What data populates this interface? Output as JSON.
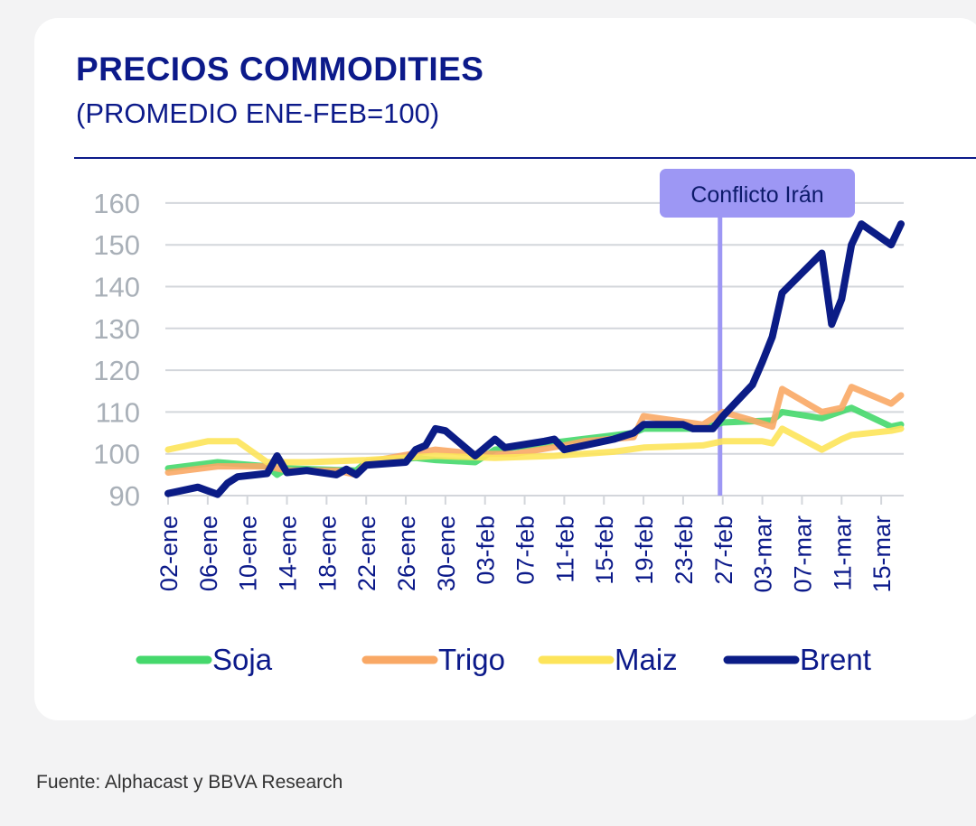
{
  "chart_data": {
    "type": "line",
    "title": "PRECIOS COMMODITIES",
    "subtitle": "(PROMEDIO ENE-FEB=100)",
    "ylim": [
      90,
      160
    ],
    "yticks": [
      "90",
      "100",
      "110",
      "120",
      "130",
      "140",
      "150",
      "160"
    ],
    "xticks": [
      "02-ene",
      "06-ene",
      "10-ene",
      "14-ene",
      "18-ene",
      "22-ene",
      "26-ene",
      "30-ene",
      "03-feb",
      "07-feb",
      "11-feb",
      "15-feb",
      "19-feb",
      "23-feb",
      "27-feb",
      "03-mar",
      "07-mar",
      "11-mar",
      "15-mar"
    ],
    "grid": true,
    "legend": "bottom",
    "annotation": {
      "label": "Conflicto Irán",
      "x": "27-feb",
      "color": "#9d97f4"
    },
    "series": [
      {
        "name": "Soja",
        "color": "#45d86c",
        "points": [
          [
            "02-ene",
            96.5
          ],
          [
            "07-ene",
            98
          ],
          [
            "12-ene",
            97
          ],
          [
            "13-ene",
            95
          ],
          [
            "14-ene",
            96.5
          ],
          [
            "21-ene",
            96
          ],
          [
            "22-ene",
            98
          ],
          [
            "27-ene",
            99
          ],
          [
            "29-ene",
            98.5
          ],
          [
            "02-feb",
            98
          ],
          [
            "04-feb",
            101
          ],
          [
            "11-feb",
            103
          ],
          [
            "18-feb",
            105
          ],
          [
            "19-feb",
            106
          ],
          [
            "25-feb",
            106
          ],
          [
            "27-feb",
            107.5
          ],
          [
            "04-mar",
            108
          ],
          [
            "05-mar",
            110
          ],
          [
            "09-mar",
            108.5
          ],
          [
            "12-mar",
            111
          ],
          [
            "16-mar",
            106.5
          ],
          [
            "17-mar",
            107
          ]
        ]
      },
      {
        "name": "Trigo",
        "color": "#f9a865",
        "points": [
          [
            "02-ene",
            95.5
          ],
          [
            "07-ene",
            97
          ],
          [
            "12-ene",
            97
          ],
          [
            "14-ene",
            96
          ],
          [
            "19-ene",
            96
          ],
          [
            "21-ene",
            95
          ],
          [
            "22-ene",
            98
          ],
          [
            "29-ene",
            101
          ],
          [
            "02-feb",
            100
          ],
          [
            "06-feb",
            100
          ],
          [
            "11-feb",
            102
          ],
          [
            "13-feb",
            103
          ],
          [
            "18-feb",
            104
          ],
          [
            "19-feb",
            109
          ],
          [
            "25-feb",
            107
          ],
          [
            "27-feb",
            110
          ],
          [
            "02-mar",
            108
          ],
          [
            "04-mar",
            106.5
          ],
          [
            "05-mar",
            115.5
          ],
          [
            "09-mar",
            110
          ],
          [
            "11-mar",
            111
          ],
          [
            "12-mar",
            116
          ],
          [
            "16-mar",
            112
          ],
          [
            "17-mar",
            114
          ]
        ]
      },
      {
        "name": "Maiz",
        "color": "#fde45a",
        "points": [
          [
            "02-ene",
            101
          ],
          [
            "06-ene",
            103
          ],
          [
            "09-ene",
            103
          ],
          [
            "12-ene",
            98
          ],
          [
            "16-ene",
            98
          ],
          [
            "22-ene",
            98.5
          ],
          [
            "29-ene",
            99.5
          ],
          [
            "04-feb",
            99
          ],
          [
            "10-feb",
            99.5
          ],
          [
            "16-feb",
            100.5
          ],
          [
            "19-feb",
            101.5
          ],
          [
            "25-feb",
            102
          ],
          [
            "27-feb",
            103
          ],
          [
            "03-mar",
            103
          ],
          [
            "04-mar",
            102.5
          ],
          [
            "05-mar",
            106
          ],
          [
            "09-mar",
            101
          ],
          [
            "11-mar",
            103.5
          ],
          [
            "12-mar",
            104.5
          ],
          [
            "16-mar",
            105.5
          ],
          [
            "17-mar",
            106
          ]
        ]
      },
      {
        "name": "Brent",
        "color": "#0b1c86",
        "points": [
          [
            "02-ene",
            90.5
          ],
          [
            "05-ene",
            92
          ],
          [
            "07-ene",
            90.3
          ],
          [
            "08-ene",
            93
          ],
          [
            "09-ene",
            94.5
          ],
          [
            "12-ene",
            95.3
          ],
          [
            "13-ene",
            99.5
          ],
          [
            "14-ene",
            95.5
          ],
          [
            "16-ene",
            96
          ],
          [
            "19-ene",
            95
          ],
          [
            "20-ene",
            96.3
          ],
          [
            "21-ene",
            95
          ],
          [
            "22-ene",
            97.3
          ],
          [
            "26-ene",
            98
          ],
          [
            "27-ene",
            101
          ],
          [
            "28-ene",
            102
          ],
          [
            "29-ene",
            106
          ],
          [
            "30-ene",
            105.5
          ],
          [
            "02-feb",
            99.5
          ],
          [
            "04-feb",
            103.5
          ],
          [
            "05-feb",
            101.5
          ],
          [
            "09-feb",
            103
          ],
          [
            "10-feb",
            103.5
          ],
          [
            "11-feb",
            101
          ],
          [
            "16-feb",
            103.5
          ],
          [
            "18-feb",
            105
          ],
          [
            "19-feb",
            107
          ],
          [
            "23-feb",
            107
          ],
          [
            "24-feb",
            106
          ],
          [
            "26-feb",
            106
          ],
          [
            "27-feb",
            109
          ],
          [
            "02-mar",
            116.5
          ],
          [
            "03-mar",
            122
          ],
          [
            "04-mar",
            128
          ],
          [
            "05-mar",
            138.5
          ],
          [
            "09-mar",
            148
          ],
          [
            "10-mar",
            131
          ],
          [
            "11-mar",
            137
          ],
          [
            "12-mar",
            150
          ],
          [
            "13-mar",
            155
          ],
          [
            "16-mar",
            150
          ],
          [
            "17-mar",
            155
          ]
        ]
      }
    ]
  },
  "footer": {
    "source": "Fuente: Alphacast y BBVA Research"
  }
}
